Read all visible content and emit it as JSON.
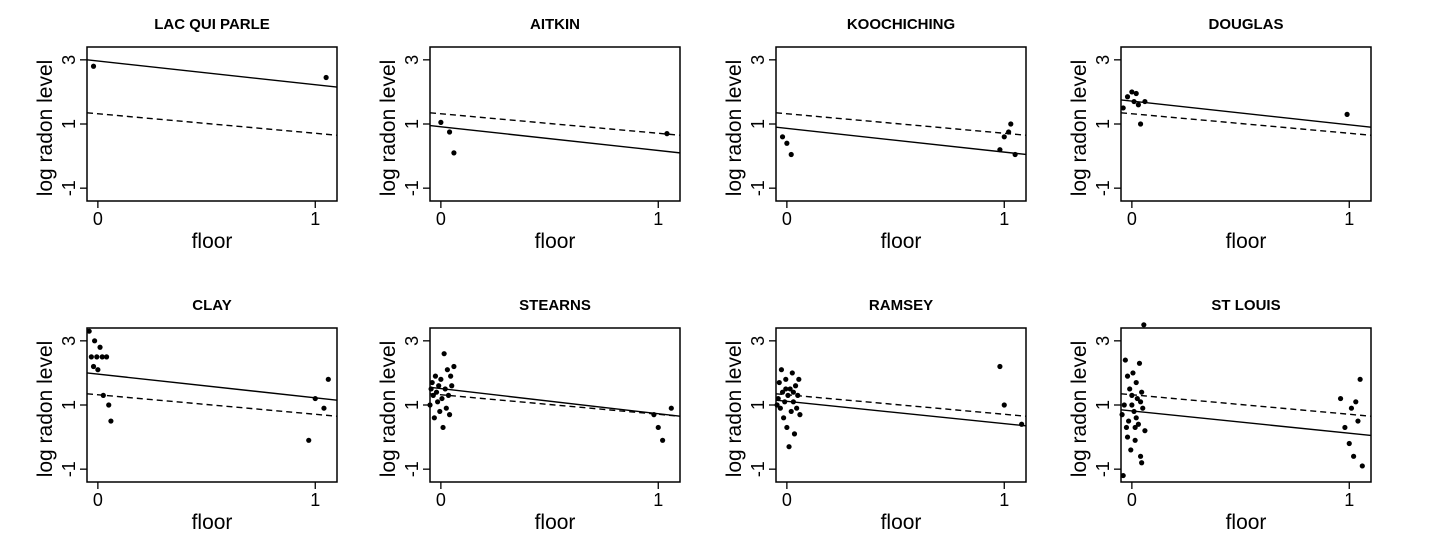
{
  "chart_data": [
    {
      "type": "scatter",
      "title": "LAC QUI PARLE",
      "xlabel": "floor",
      "ylabel": "log radon level",
      "xlim": [
        -0.05,
        1.1
      ],
      "ylim": [
        -1.4,
        3.4
      ],
      "xticks": [
        "0",
        "1"
      ],
      "yticks": [
        "-1",
        "1",
        "3"
      ],
      "points": [
        [
          -0.02,
          2.8
        ],
        [
          1.05,
          2.45
        ]
      ],
      "lines": [
        {
          "style": "solid",
          "from": [
            -0.05,
            3.0
          ],
          "to": [
            1.1,
            2.15
          ]
        },
        {
          "style": "dashed",
          "from": [
            -0.05,
            1.35
          ],
          "to": [
            1.1,
            0.65
          ]
        }
      ]
    },
    {
      "type": "scatter",
      "title": "AITKIN",
      "xlabel": "floor",
      "ylabel": "log radon level",
      "xlim": [
        -0.05,
        1.1
      ],
      "ylim": [
        -1.4,
        3.4
      ],
      "xticks": [
        "0",
        "1"
      ],
      "yticks": [
        "-1",
        "1",
        "3"
      ],
      "points": [
        [
          0.0,
          1.05
        ],
        [
          0.04,
          0.75
        ],
        [
          0.06,
          0.1
        ],
        [
          1.04,
          0.7
        ]
      ],
      "lines": [
        {
          "style": "solid",
          "from": [
            -0.05,
            0.95
          ],
          "to": [
            1.1,
            0.1
          ]
        },
        {
          "style": "dashed",
          "from": [
            -0.05,
            1.35
          ],
          "to": [
            1.1,
            0.65
          ]
        }
      ]
    },
    {
      "type": "scatter",
      "title": "KOOCHICHING",
      "xlabel": "floor",
      "ylabel": "log radon level",
      "xlim": [
        -0.05,
        1.1
      ],
      "ylim": [
        -1.4,
        3.4
      ],
      "xticks": [
        "0",
        "1"
      ],
      "yticks": [
        "-1",
        "1",
        "3"
      ],
      "points": [
        [
          -0.02,
          0.6
        ],
        [
          0.0,
          0.4
        ],
        [
          0.02,
          0.05
        ],
        [
          0.98,
          0.2
        ],
        [
          1.0,
          0.6
        ],
        [
          1.02,
          0.75
        ],
        [
          1.03,
          1.0
        ],
        [
          1.05,
          0.05
        ]
      ],
      "lines": [
        {
          "style": "solid",
          "from": [
            -0.05,
            0.9
          ],
          "to": [
            1.1,
            0.05
          ]
        },
        {
          "style": "dashed",
          "from": [
            -0.05,
            1.35
          ],
          "to": [
            1.1,
            0.65
          ]
        }
      ]
    },
    {
      "type": "scatter",
      "title": "DOUGLAS",
      "xlabel": "floor",
      "ylabel": "log radon level",
      "xlim": [
        -0.05,
        1.1
      ],
      "ylim": [
        -1.4,
        3.4
      ],
      "xticks": [
        "0",
        "1"
      ],
      "yticks": [
        "-1",
        "1",
        "3"
      ],
      "points": [
        [
          -0.04,
          1.5
        ],
        [
          -0.02,
          1.85
        ],
        [
          0.0,
          2.0
        ],
        [
          0.01,
          1.7
        ],
        [
          0.02,
          1.95
        ],
        [
          0.03,
          1.6
        ],
        [
          0.04,
          1.0
        ],
        [
          0.06,
          1.7
        ],
        [
          0.99,
          1.3
        ]
      ],
      "lines": [
        {
          "style": "solid",
          "from": [
            -0.05,
            1.75
          ],
          "to": [
            1.1,
            0.9
          ]
        },
        {
          "style": "dashed",
          "from": [
            -0.05,
            1.35
          ],
          "to": [
            1.1,
            0.65
          ]
        }
      ]
    },
    {
      "type": "scatter",
      "title": "CLAY",
      "xlabel": "floor",
      "ylabel": "log radon level",
      "xlim": [
        -0.05,
        1.1
      ],
      "ylim": [
        -1.4,
        3.4
      ],
      "xticks": [
        "0",
        "1"
      ],
      "yticks": [
        "-1",
        "1",
        "3"
      ],
      "points": [
        [
          -0.04,
          3.3
        ],
        [
          -0.03,
          2.5
        ],
        [
          -0.02,
          2.2
        ],
        [
          -0.015,
          3.0
        ],
        [
          -0.005,
          2.5
        ],
        [
          0.0,
          2.1
        ],
        [
          0.01,
          2.8
        ],
        [
          0.02,
          2.5
        ],
        [
          0.025,
          1.3
        ],
        [
          0.04,
          2.5
        ],
        [
          0.05,
          1.0
        ],
        [
          0.06,
          0.5
        ],
        [
          0.97,
          -0.1
        ],
        [
          1.0,
          1.2
        ],
        [
          1.04,
          0.9
        ],
        [
          1.06,
          1.8
        ]
      ],
      "lines": [
        {
          "style": "solid",
          "from": [
            -0.05,
            2.0
          ],
          "to": [
            1.1,
            1.15
          ]
        },
        {
          "style": "dashed",
          "from": [
            -0.05,
            1.35
          ],
          "to": [
            1.1,
            0.65
          ]
        }
      ]
    },
    {
      "type": "scatter",
      "title": "STEARNS",
      "xlabel": "floor",
      "ylabel": "log radon level",
      "xlim": [
        -0.05,
        1.1
      ],
      "ylim": [
        -1.4,
        3.4
      ],
      "xticks": [
        "0",
        "1"
      ],
      "yticks": [
        "-1",
        "1",
        "3"
      ],
      "points": [
        [
          -0.05,
          1.0
        ],
        [
          -0.04,
          1.7
        ],
        [
          -0.035,
          1.3
        ],
        [
          -0.03,
          0.6
        ],
        [
          -0.025,
          1.9
        ],
        [
          -0.02,
          1.4
        ],
        [
          -0.015,
          1.1
        ],
        [
          -0.01,
          1.6
        ],
        [
          -0.005,
          0.8
        ],
        [
          0.0,
          1.8
        ],
        [
          0.005,
          1.2
        ],
        [
          0.01,
          0.3
        ],
        [
          0.015,
          2.6
        ],
        [
          0.02,
          1.5
        ],
        [
          0.025,
          0.9
        ],
        [
          0.03,
          2.1
        ],
        [
          0.035,
          1.3
        ],
        [
          0.04,
          0.7
        ],
        [
          0.045,
          1.9
        ],
        [
          0.05,
          1.6
        ],
        [
          0.06,
          2.2
        ],
        [
          -0.045,
          1.5
        ],
        [
          0.98,
          0.7
        ],
        [
          1.0,
          0.3
        ],
        [
          1.02,
          -0.1
        ],
        [
          1.06,
          0.9
        ]
      ],
      "lines": [
        {
          "style": "solid",
          "from": [
            -0.05,
            1.55
          ],
          "to": [
            1.1,
            0.65
          ]
        },
        {
          "style": "dashed",
          "from": [
            -0.05,
            1.35
          ],
          "to": [
            1.1,
            0.65
          ]
        }
      ]
    },
    {
      "type": "scatter",
      "title": "RAMSEY",
      "xlabel": "floor",
      "ylabel": "log radon level",
      "xlim": [
        -0.05,
        1.1
      ],
      "ylim": [
        -1.4,
        3.4
      ],
      "xticks": [
        "0",
        "1"
      ],
      "yticks": [
        "-1",
        "1",
        "3"
      ],
      "points": [
        [
          -0.04,
          1.2
        ],
        [
          -0.035,
          1.7
        ],
        [
          -0.03,
          0.9
        ],
        [
          -0.025,
          2.1
        ],
        [
          -0.02,
          1.4
        ],
        [
          -0.015,
          0.6
        ],
        [
          -0.01,
          1.1
        ],
        [
          -0.005,
          1.8
        ],
        [
          0.0,
          0.3
        ],
        [
          0.005,
          1.3
        ],
        [
          0.01,
          -0.3
        ],
        [
          0.015,
          1.5
        ],
        [
          0.02,
          0.8
        ],
        [
          0.025,
          2.0
        ],
        [
          0.03,
          1.1
        ],
        [
          0.035,
          0.1
        ],
        [
          0.04,
          1.6
        ],
        [
          0.045,
          0.9
        ],
        [
          0.05,
          1.3
        ],
        [
          0.055,
          1.8
        ],
        [
          0.06,
          0.7
        ],
        [
          -0.045,
          1.0
        ],
        [
          -0.005,
          1.5
        ],
        [
          0.03,
          1.4
        ],
        [
          0.98,
          2.2
        ],
        [
          1.0,
          1.0
        ],
        [
          1.08,
          0.4
        ]
      ],
      "lines": [
        {
          "style": "solid",
          "from": [
            -0.05,
            1.15
          ],
          "to": [
            1.1,
            0.35
          ]
        },
        {
          "style": "dashed",
          "from": [
            -0.05,
            1.35
          ],
          "to": [
            1.1,
            0.65
          ]
        }
      ]
    },
    {
      "type": "scatter",
      "title": "ST LOUIS",
      "xlabel": "floor",
      "ylabel": "log radon level",
      "xlim": [
        -0.05,
        1.1
      ],
      "ylim": [
        -1.4,
        3.4
      ],
      "xticks": [
        "0",
        "1"
      ],
      "yticks": [
        "-1",
        "1",
        "3"
      ],
      "points": [
        [
          -0.04,
          -1.2
        ],
        [
          -0.03,
          2.4
        ],
        [
          -0.025,
          0.3
        ],
        [
          -0.02,
          1.9
        ],
        [
          -0.015,
          0.5
        ],
        [
          -0.01,
          1.5
        ],
        [
          -0.005,
          -0.4
        ],
        [
          0.0,
          1.0
        ],
        [
          0.005,
          2.0
        ],
        [
          0.01,
          0.8
        ],
        [
          0.015,
          -0.1
        ],
        [
          0.02,
          1.7
        ],
        [
          0.025,
          1.2
        ],
        [
          0.03,
          0.4
        ],
        [
          0.035,
          2.3
        ],
        [
          0.04,
          -0.6
        ],
        [
          0.045,
          1.4
        ],
        [
          0.05,
          0.9
        ],
        [
          0.055,
          3.5
        ],
        [
          0.06,
          0.2
        ],
        [
          -0.035,
          1.0
        ],
        [
          -0.02,
          0.0
        ],
        [
          0.0,
          1.3
        ],
        [
          0.02,
          0.6
        ],
        [
          0.04,
          1.1
        ],
        [
          -0.045,
          0.7
        ],
        [
          0.015,
          0.3
        ],
        [
          0.045,
          -0.8
        ],
        [
          0.96,
          1.2
        ],
        [
          0.98,
          0.3
        ],
        [
          1.0,
          -0.2
        ],
        [
          1.01,
          0.9
        ],
        [
          1.02,
          -0.6
        ],
        [
          1.03,
          1.1
        ],
        [
          1.04,
          0.5
        ],
        [
          1.05,
          1.8
        ],
        [
          1.06,
          -0.9
        ]
      ],
      "lines": [
        {
          "style": "solid",
          "from": [
            -0.05,
            0.85
          ],
          "to": [
            1.1,
            0.05
          ]
        },
        {
          "style": "dashed",
          "from": [
            -0.05,
            1.35
          ],
          "to": [
            1.1,
            0.65
          ]
        }
      ]
    }
  ]
}
